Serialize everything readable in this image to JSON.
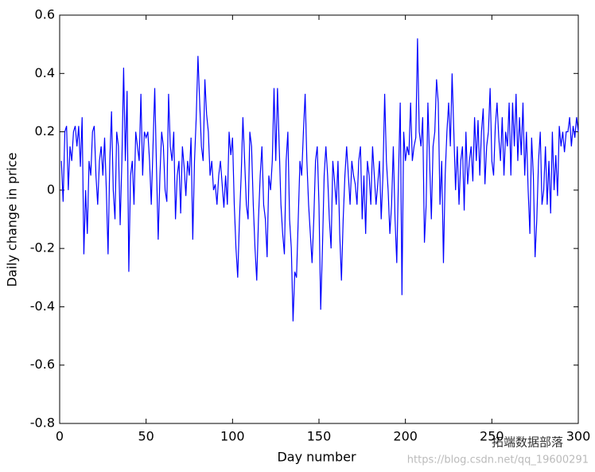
{
  "chart_data": {
    "type": "line",
    "xlabel": "Day number",
    "ylabel": "Daily change in price",
    "x": [
      1,
      2,
      3,
      4,
      5,
      6,
      7,
      8,
      9,
      10,
      11,
      12,
      13,
      14,
      15,
      16,
      17,
      18,
      19,
      20,
      21,
      22,
      23,
      24,
      25,
      26,
      27,
      28,
      29,
      30,
      31,
      32,
      33,
      34,
      35,
      36,
      37,
      38,
      39,
      40,
      41,
      42,
      43,
      44,
      45,
      46,
      47,
      48,
      49,
      50,
      51,
      52,
      53,
      54,
      55,
      56,
      57,
      58,
      59,
      60,
      61,
      62,
      63,
      64,
      65,
      66,
      67,
      68,
      69,
      70,
      71,
      72,
      73,
      74,
      75,
      76,
      77,
      78,
      79,
      80,
      81,
      82,
      83,
      84,
      85,
      86,
      87,
      88,
      89,
      90,
      91,
      92,
      93,
      94,
      95,
      96,
      97,
      98,
      99,
      100,
      101,
      102,
      103,
      104,
      105,
      106,
      107,
      108,
      109,
      110,
      111,
      112,
      113,
      114,
      115,
      116,
      117,
      118,
      119,
      120,
      121,
      122,
      123,
      124,
      125,
      126,
      127,
      128,
      129,
      130,
      131,
      132,
      133,
      134,
      135,
      136,
      137,
      138,
      139,
      140,
      141,
      142,
      143,
      144,
      145,
      146,
      147,
      148,
      149,
      150,
      151,
      152,
      153,
      154,
      155,
      156,
      157,
      158,
      159,
      160,
      161,
      162,
      163,
      164,
      165,
      166,
      167,
      168,
      169,
      170,
      171,
      172,
      173,
      174,
      175,
      176,
      177,
      178,
      179,
      180,
      181,
      182,
      183,
      184,
      185,
      186,
      187,
      188,
      189,
      190,
      191,
      192,
      193,
      194,
      195,
      196,
      197,
      198,
      199,
      200,
      201,
      202,
      203,
      204,
      205,
      206,
      207,
      208,
      209,
      210,
      211,
      212,
      213,
      214,
      215,
      216,
      217,
      218,
      219,
      220,
      221,
      222,
      223,
      224,
      225,
      226,
      227,
      228,
      229,
      230,
      231,
      232,
      233,
      234,
      235,
      236,
      237,
      238,
      239,
      240,
      241,
      242,
      243,
      244,
      245,
      246,
      247,
      248,
      249,
      250,
      251,
      252,
      253,
      254,
      255,
      256,
      257,
      258,
      259,
      260,
      261,
      262,
      263,
      264,
      265,
      266,
      267,
      268,
      269,
      270,
      271,
      272,
      273,
      274,
      275,
      276,
      277,
      278,
      279,
      280,
      281,
      282,
      283,
      284,
      285,
      286,
      287,
      288,
      289,
      290,
      291,
      292,
      293,
      294,
      295,
      296,
      297,
      298,
      299,
      300
    ],
    "series": [
      {
        "color": "#0000ff",
        "values": [
          0.1,
          -0.04,
          0.2,
          0.22,
          0,
          0.15,
          0.1,
          0.2,
          0.22,
          0.15,
          0.22,
          0.08,
          0.25,
          -0.22,
          0,
          -0.15,
          0.1,
          0.05,
          0.2,
          0.22,
          0.05,
          -0.05,
          0.1,
          0.15,
          0.05,
          0.18,
          0,
          -0.22,
          0.1,
          0.27,
          0,
          -0.1,
          0.2,
          0.15,
          -0.12,
          0.1,
          0.42,
          0.1,
          0.34,
          -0.28,
          0.05,
          0.1,
          -0.05,
          0.2,
          0.15,
          0.1,
          0.33,
          0.05,
          0.2,
          0.18,
          0.2,
          0.1,
          -0.05,
          0.15,
          0.35,
          0.08,
          -0.17,
          0.05,
          0.2,
          0.15,
          0,
          -0.04,
          0.33,
          0.15,
          0.1,
          0.2,
          -0.1,
          0.05,
          0.1,
          -0.08,
          0.15,
          0.08,
          -0.02,
          0.1,
          0.05,
          0.18,
          -0.17,
          0.1,
          0.25,
          0.46,
          0.3,
          0.15,
          0.1,
          0.38,
          0.26,
          0.2,
          0.05,
          0.1,
          0,
          0.02,
          -0.05,
          0.05,
          0.1,
          0.02,
          -0.06,
          0.05,
          -0.05,
          0.2,
          0.12,
          0.18,
          -0.05,
          -0.2,
          -0.3,
          -0.1,
          0.05,
          0.25,
          0.1,
          -0.05,
          -0.1,
          0.2,
          0.15,
          -0.05,
          -0.2,
          -0.31,
          -0.1,
          0.05,
          0.15,
          -0.05,
          -0.1,
          -0.23,
          0.05,
          0,
          0.1,
          0.35,
          0.1,
          0.35,
          0.15,
          -0.05,
          -0.15,
          -0.22,
          0.1,
          0.2,
          -0.1,
          -0.2,
          -0.45,
          -0.28,
          -0.3,
          -0.1,
          0.1,
          0.05,
          0.2,
          0.33,
          0.1,
          -0.05,
          -0.15,
          -0.25,
          -0.1,
          0.1,
          0.15,
          -0.05,
          -0.41,
          -0.2,
          0.05,
          0.15,
          0.05,
          -0.1,
          -0.2,
          0.1,
          0.03,
          -0.05,
          0.1,
          -0.15,
          -0.31,
          -0.1,
          0.05,
          0.15,
          0.05,
          -0.05,
          0.1,
          0.05,
          0.02,
          -0.05,
          0.1,
          0.15,
          -0.1,
          0.05,
          -0.15,
          0.1,
          0.05,
          -0.05,
          0.15,
          0.05,
          -0.05,
          0.02,
          0.1,
          -0.1,
          0.05,
          0.33,
          0.1,
          0,
          -0.15,
          -0.05,
          0.15,
          -0.1,
          -0.25,
          0.05,
          0.3,
          -0.36,
          0.2,
          0.1,
          0.15,
          0.12,
          0.3,
          0.1,
          0.15,
          0.18,
          0.52,
          0.2,
          0.15,
          0.25,
          -0.18,
          -0.05,
          0.3,
          0.1,
          -0.1,
          0.15,
          0.2,
          0.38,
          0.3,
          -0.05,
          0.1,
          -0.25,
          0.05,
          0.2,
          0.3,
          0.15,
          0.4,
          0.2,
          0,
          0.15,
          -0.05,
          0.1,
          0.15,
          -0.07,
          0.2,
          0.02,
          0.1,
          0.15,
          0.03,
          0.25,
          0.1,
          0.24,
          0.05,
          0.2,
          0.28,
          0.02,
          0.15,
          0.2,
          0.35,
          0.1,
          0.05,
          0.22,
          0.3,
          0.18,
          0.1,
          0.25,
          0.05,
          0.2,
          0.15,
          0.3,
          0.05,
          0.3,
          0.15,
          0.33,
          0.1,
          0.25,
          0.12,
          0.3,
          0.05,
          0.2,
          0,
          -0.15,
          0.18,
          0.05,
          -0.23,
          -0.1,
          0.1,
          0.2,
          -0.05,
          0,
          0.15,
          -0.05,
          0.1,
          -0.08,
          0.2,
          0,
          0.12,
          -0.02,
          0.22,
          0.15,
          0.2,
          0.13,
          0.2,
          0.2,
          0.25,
          0.15,
          0.22,
          0.18,
          0.25,
          0.2
        ]
      }
    ],
    "xlim": [
      0,
      300
    ],
    "xticks": [
      0,
      50,
      100,
      150,
      200,
      250,
      300
    ],
    "ylim": [
      -0.8,
      0.6
    ],
    "yticks": [
      -0.8,
      -0.6,
      -0.4,
      -0.2,
      0,
      0.2,
      0.4,
      0.6
    ],
    "watermark": "拓端数据部落",
    "watermark_url": "https://blog.csdn.net/qq_19600291"
  }
}
